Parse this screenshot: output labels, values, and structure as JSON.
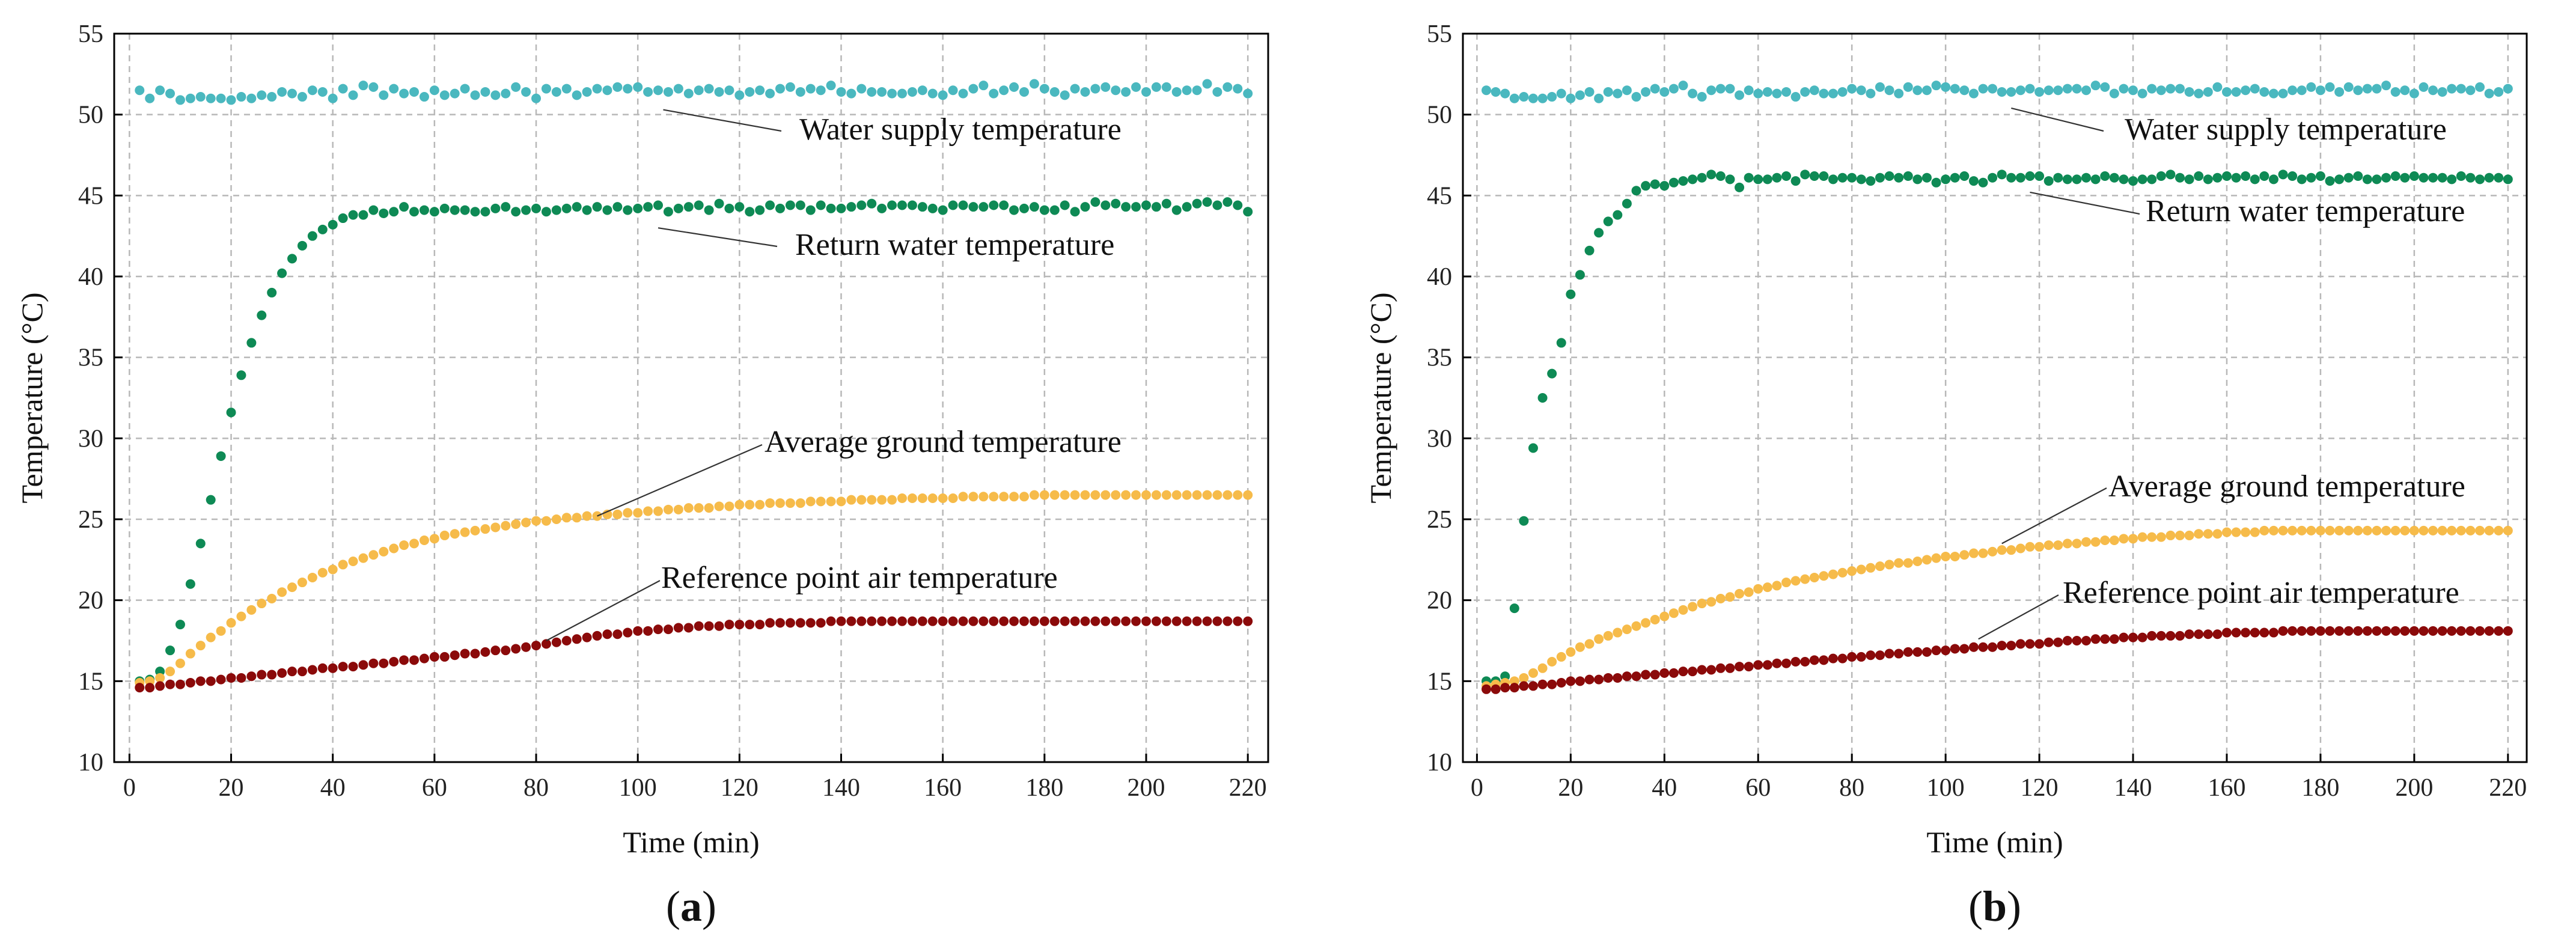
{
  "chart_data": [
    {
      "type": "scatter",
      "panel_label_pre": "(",
      "panel_label": "a",
      "panel_label_post": ")",
      "xlabel": "Time (min)",
      "ylabel": "Temperature (°C)",
      "xlim": [
        -3,
        224
      ],
      "ylim": [
        10,
        55
      ],
      "xticks": [
        0,
        20,
        40,
        60,
        80,
        100,
        120,
        140,
        160,
        180,
        200,
        220
      ],
      "yticks": [
        10,
        15,
        20,
        25,
        30,
        35,
        40,
        45,
        50,
        55
      ],
      "grid": true,
      "x_start": 2,
      "x_step": 2,
      "series": [
        {
          "name": "Water supply temperature",
          "color": "#4ab8bf",
          "annotation_anchor": [
            105,
            50.3
          ],
          "values": [
            51.5,
            51.0,
            51.5,
            51.3,
            50.9,
            51.0,
            51.1,
            51.0,
            51.0,
            50.9,
            51.1,
            51.0,
            51.2,
            51.1,
            51.4,
            51.3,
            51.1,
            51.5,
            51.4,
            51.0,
            51.6,
            51.2,
            51.8,
            51.7,
            51.2,
            51.6,
            51.3,
            51.4,
            51.1,
            51.5,
            51.2,
            51.3,
            51.6,
            51.2,
            51.4,
            51.2,
            51.3,
            51.7,
            51.4,
            51.0,
            51.6,
            51.4,
            51.6,
            51.2,
            51.4,
            51.6,
            51.5,
            51.7,
            51.6,
            51.7,
            51.4,
            51.5,
            51.4,
            51.6,
            51.3,
            51.5,
            51.6,
            51.4,
            51.5,
            51.2,
            51.4,
            51.5,
            51.3,
            51.6,
            51.7,
            51.4,
            51.6,
            51.5,
            51.8,
            51.4,
            51.3,
            51.6,
            51.4,
            51.4,
            51.3,
            51.3,
            51.4,
            51.5,
            51.3,
            51.2,
            51.5,
            51.3,
            51.6,
            51.8,
            51.3,
            51.5,
            51.7,
            51.4,
            51.9,
            51.6,
            51.4,
            51.2,
            51.6,
            51.4,
            51.6,
            51.7,
            51.5,
            51.4,
            51.7,
            51.4,
            51.7,
            51.7,
            51.4,
            51.5,
            51.5,
            51.9,
            51.4,
            51.7,
            51.6,
            51.3
          ]
        },
        {
          "name": "Return water temperature",
          "color": "#0e8a55",
          "annotation_anchor": [
            104,
            43.0
          ],
          "values": [
            15.0,
            15.1,
            15.6,
            16.9,
            18.5,
            21.0,
            23.5,
            26.2,
            28.9,
            31.6,
            33.9,
            35.9,
            37.6,
            39.0,
            40.2,
            41.1,
            41.9,
            42.5,
            42.9,
            43.2,
            43.6,
            43.8,
            43.8,
            44.1,
            43.9,
            44.0,
            44.3,
            44.0,
            44.1,
            44.0,
            44.2,
            44.1,
            44.1,
            44.0,
            44.0,
            44.2,
            44.3,
            44.0,
            44.1,
            44.2,
            44.0,
            44.1,
            44.2,
            44.3,
            44.1,
            44.3,
            44.1,
            44.3,
            44.1,
            44.2,
            44.3,
            44.4,
            44.0,
            44.2,
            44.3,
            44.4,
            44.1,
            44.5,
            44.2,
            44.3,
            44.0,
            44.1,
            44.4,
            44.2,
            44.4,
            44.4,
            44.1,
            44.4,
            44.2,
            44.2,
            44.3,
            44.4,
            44.5,
            44.2,
            44.4,
            44.4,
            44.4,
            44.3,
            44.2,
            44.1,
            44.4,
            44.4,
            44.3,
            44.3,
            44.4,
            44.4,
            44.1,
            44.2,
            44.3,
            44.1,
            44.1,
            44.4,
            44.0,
            44.3,
            44.6,
            44.4,
            44.5,
            44.3,
            44.3,
            44.4,
            44.3,
            44.5,
            44.1,
            44.3,
            44.5,
            44.6,
            44.4,
            44.6,
            44.4,
            44.0
          ]
        },
        {
          "name": "Average ground temperature",
          "color": "#f6bb4a",
          "annotation_anchor": [
            92,
            25.2
          ],
          "values": [
            14.9,
            15.0,
            15.2,
            15.6,
            16.1,
            16.7,
            17.2,
            17.7,
            18.1,
            18.6,
            19.0,
            19.4,
            19.8,
            20.1,
            20.5,
            20.8,
            21.1,
            21.4,
            21.7,
            21.9,
            22.2,
            22.4,
            22.6,
            22.8,
            23.0,
            23.2,
            23.4,
            23.5,
            23.7,
            23.8,
            24.0,
            24.1,
            24.2,
            24.3,
            24.4,
            24.5,
            24.6,
            24.7,
            24.8,
            24.9,
            24.9,
            25.0,
            25.1,
            25.1,
            25.2,
            25.2,
            25.3,
            25.3,
            25.4,
            25.4,
            25.5,
            25.5,
            25.6,
            25.6,
            25.7,
            25.7,
            25.7,
            25.8,
            25.8,
            25.9,
            25.9,
            25.9,
            26.0,
            26.0,
            26.0,
            26.0,
            26.1,
            26.1,
            26.1,
            26.1,
            26.2,
            26.2,
            26.2,
            26.2,
            26.2,
            26.3,
            26.3,
            26.3,
            26.3,
            26.3,
            26.3,
            26.4,
            26.4,
            26.4,
            26.4,
            26.4,
            26.4,
            26.4,
            26.5,
            26.5,
            26.5,
            26.5,
            26.5,
            26.5,
            26.5,
            26.5,
            26.5,
            26.5,
            26.5,
            26.5,
            26.5,
            26.5,
            26.5,
            26.5,
            26.5,
            26.5,
            26.5,
            26.5,
            26.5,
            26.5
          ]
        },
        {
          "name": "Reference point air temperature",
          "color": "#8b0a0a",
          "annotation_anchor": [
            82,
            17.5
          ],
          "values": [
            14.6,
            14.6,
            14.7,
            14.8,
            14.8,
            14.9,
            15.0,
            15.0,
            15.1,
            15.2,
            15.2,
            15.3,
            15.4,
            15.4,
            15.5,
            15.6,
            15.6,
            15.7,
            15.8,
            15.8,
            15.9,
            15.9,
            16.0,
            16.1,
            16.1,
            16.2,
            16.3,
            16.3,
            16.4,
            16.5,
            16.5,
            16.6,
            16.7,
            16.7,
            16.8,
            16.9,
            16.9,
            17.0,
            17.1,
            17.2,
            17.3,
            17.4,
            17.5,
            17.6,
            17.7,
            17.8,
            17.9,
            17.9,
            18.0,
            18.1,
            18.1,
            18.2,
            18.2,
            18.3,
            18.3,
            18.4,
            18.4,
            18.4,
            18.5,
            18.5,
            18.5,
            18.5,
            18.6,
            18.6,
            18.6,
            18.6,
            18.6,
            18.6,
            18.7,
            18.7,
            18.7,
            18.7,
            18.7,
            18.7,
            18.7,
            18.7,
            18.7,
            18.7,
            18.7,
            18.7,
            18.7,
            18.7,
            18.7,
            18.7,
            18.7,
            18.7,
            18.7,
            18.7,
            18.7,
            18.7,
            18.7,
            18.7,
            18.7,
            18.7,
            18.7,
            18.7,
            18.7,
            18.7,
            18.7,
            18.7,
            18.7,
            18.7,
            18.7,
            18.7,
            18.7,
            18.7,
            18.7,
            18.7,
            18.7,
            18.7
          ]
        }
      ]
    },
    {
      "type": "scatter",
      "panel_label_pre": "(",
      "panel_label": "b",
      "panel_label_post": ")",
      "xlabel": "Time (min)",
      "ylabel": "Temperature (°C)",
      "xlim": [
        -3,
        224
      ],
      "ylim": [
        10,
        55
      ],
      "xticks": [
        0,
        20,
        40,
        60,
        80,
        100,
        120,
        140,
        160,
        180,
        200,
        220
      ],
      "yticks": [
        10,
        15,
        20,
        25,
        30,
        35,
        40,
        45,
        50,
        55
      ],
      "grid": true,
      "x_start": 2,
      "x_step": 2,
      "series": [
        {
          "name": "Water supply temperature",
          "color": "#4ab8bf",
          "annotation_anchor": [
            114,
            50.4
          ],
          "values": [
            51.5,
            51.4,
            51.3,
            51.0,
            51.1,
            51.0,
            51.0,
            51.1,
            51.3,
            51.0,
            51.2,
            51.4,
            51.0,
            51.4,
            51.3,
            51.5,
            51.1,
            51.4,
            51.6,
            51.4,
            51.6,
            51.8,
            51.3,
            51.1,
            51.5,
            51.6,
            51.6,
            51.2,
            51.5,
            51.3,
            51.4,
            51.3,
            51.4,
            51.1,
            51.4,
            51.5,
            51.3,
            51.3,
            51.4,
            51.6,
            51.5,
            51.3,
            51.7,
            51.5,
            51.3,
            51.7,
            51.5,
            51.5,
            51.8,
            51.7,
            51.6,
            51.5,
            51.3,
            51.6,
            51.6,
            51.4,
            51.4,
            51.5,
            51.6,
            51.4,
            51.5,
            51.5,
            51.6,
            51.6,
            51.5,
            51.8,
            51.7,
            51.3,
            51.6,
            51.5,
            51.3,
            51.6,
            51.5,
            51.6,
            51.6,
            51.4,
            51.3,
            51.4,
            51.7,
            51.4,
            51.4,
            51.5,
            51.6,
            51.4,
            51.3,
            51.3,
            51.5,
            51.5,
            51.7,
            51.5,
            51.7,
            51.4,
            51.7,
            51.5,
            51.6,
            51.6,
            51.8,
            51.4,
            51.5,
            51.3,
            51.7,
            51.5,
            51.4,
            51.6,
            51.6,
            51.5,
            51.7,
            51.3,
            51.4,
            51.6
          ]
        },
        {
          "name": "Return water temperature",
          "color": "#0e8a55",
          "annotation_anchor": [
            118,
            45.2
          ],
          "values": [
            15.0,
            15.0,
            15.3,
            19.5,
            24.9,
            29.4,
            32.5,
            34.0,
            35.9,
            38.9,
            40.1,
            41.6,
            42.7,
            43.4,
            43.8,
            44.5,
            45.3,
            45.6,
            45.7,
            45.6,
            45.8,
            45.9,
            46.0,
            46.1,
            46.3,
            46.2,
            46.0,
            45.5,
            46.1,
            46.0,
            46.0,
            46.1,
            46.2,
            45.9,
            46.3,
            46.2,
            46.2,
            46.0,
            46.1,
            46.1,
            46.0,
            45.9,
            46.1,
            46.2,
            46.1,
            46.2,
            46.0,
            46.1,
            45.8,
            46.0,
            46.1,
            46.2,
            45.9,
            45.8,
            46.1,
            46.3,
            46.1,
            46.1,
            46.2,
            46.2,
            45.9,
            46.1,
            46.0,
            46.0,
            46.1,
            46.0,
            46.2,
            46.1,
            46.0,
            45.9,
            46.0,
            46.0,
            46.2,
            46.3,
            46.1,
            46.0,
            46.2,
            46.0,
            46.1,
            46.2,
            46.1,
            46.2,
            46.0,
            46.2,
            46.0,
            46.3,
            46.2,
            46.0,
            46.1,
            46.2,
            45.9,
            46.0,
            46.1,
            46.2,
            46.0,
            46.0,
            46.1,
            46.2,
            46.1,
            46.2,
            46.1,
            46.1,
            46.1,
            46.0,
            46.2,
            46.1,
            46.0,
            46.1,
            46.1,
            46.0
          ]
        },
        {
          "name": "Average ground temperature",
          "color": "#f6bb4a",
          "annotation_anchor": [
            112,
            23.5
          ],
          "values": [
            14.7,
            14.8,
            14.9,
            15.0,
            15.2,
            15.5,
            15.8,
            16.2,
            16.5,
            16.8,
            17.1,
            17.3,
            17.6,
            17.8,
            18.0,
            18.2,
            18.4,
            18.6,
            18.8,
            19.0,
            19.2,
            19.4,
            19.6,
            19.8,
            19.9,
            20.1,
            20.2,
            20.4,
            20.5,
            20.7,
            20.8,
            20.9,
            21.1,
            21.2,
            21.3,
            21.4,
            21.5,
            21.6,
            21.7,
            21.8,
            21.9,
            22.0,
            22.1,
            22.2,
            22.3,
            22.3,
            22.4,
            22.5,
            22.6,
            22.7,
            22.7,
            22.8,
            22.9,
            22.9,
            23.0,
            23.1,
            23.1,
            23.2,
            23.3,
            23.3,
            23.4,
            23.4,
            23.5,
            23.5,
            23.6,
            23.6,
            23.7,
            23.7,
            23.8,
            23.8,
            23.9,
            23.9,
            23.9,
            24.0,
            24.0,
            24.0,
            24.1,
            24.1,
            24.1,
            24.2,
            24.2,
            24.2,
            24.2,
            24.3,
            24.3,
            24.3,
            24.3,
            24.3,
            24.3,
            24.3,
            24.3,
            24.3,
            24.3,
            24.3,
            24.3,
            24.3,
            24.3,
            24.3,
            24.3,
            24.3,
            24.3,
            24.3,
            24.3,
            24.3,
            24.3,
            24.3,
            24.3,
            24.3,
            24.3,
            24.3
          ]
        },
        {
          "name": "Reference point air temperature",
          "color": "#8b0a0a",
          "annotation_anchor": [
            107,
            17.6
          ],
          "values": [
            14.5,
            14.5,
            14.6,
            14.6,
            14.7,
            14.7,
            14.8,
            14.8,
            14.9,
            15.0,
            15.0,
            15.1,
            15.1,
            15.2,
            15.2,
            15.3,
            15.3,
            15.4,
            15.4,
            15.5,
            15.5,
            15.6,
            15.6,
            15.7,
            15.7,
            15.8,
            15.8,
            15.9,
            15.9,
            16.0,
            16.0,
            16.1,
            16.1,
            16.2,
            16.2,
            16.3,
            16.3,
            16.4,
            16.4,
            16.5,
            16.5,
            16.6,
            16.6,
            16.7,
            16.7,
            16.8,
            16.8,
            16.8,
            16.9,
            16.9,
            17.0,
            17.0,
            17.1,
            17.1,
            17.1,
            17.2,
            17.2,
            17.3,
            17.3,
            17.3,
            17.4,
            17.4,
            17.5,
            17.5,
            17.5,
            17.6,
            17.6,
            17.6,
            17.7,
            17.7,
            17.7,
            17.8,
            17.8,
            17.8,
            17.8,
            17.9,
            17.9,
            17.9,
            17.9,
            18.0,
            18.0,
            18.0,
            18.0,
            18.0,
            18.0,
            18.1,
            18.1,
            18.1,
            18.1,
            18.1,
            18.1,
            18.1,
            18.1,
            18.1,
            18.1,
            18.1,
            18.1,
            18.1,
            18.1,
            18.1,
            18.1,
            18.1,
            18.1,
            18.1,
            18.1,
            18.1,
            18.1,
            18.1,
            18.1,
            18.1
          ]
        }
      ]
    }
  ]
}
